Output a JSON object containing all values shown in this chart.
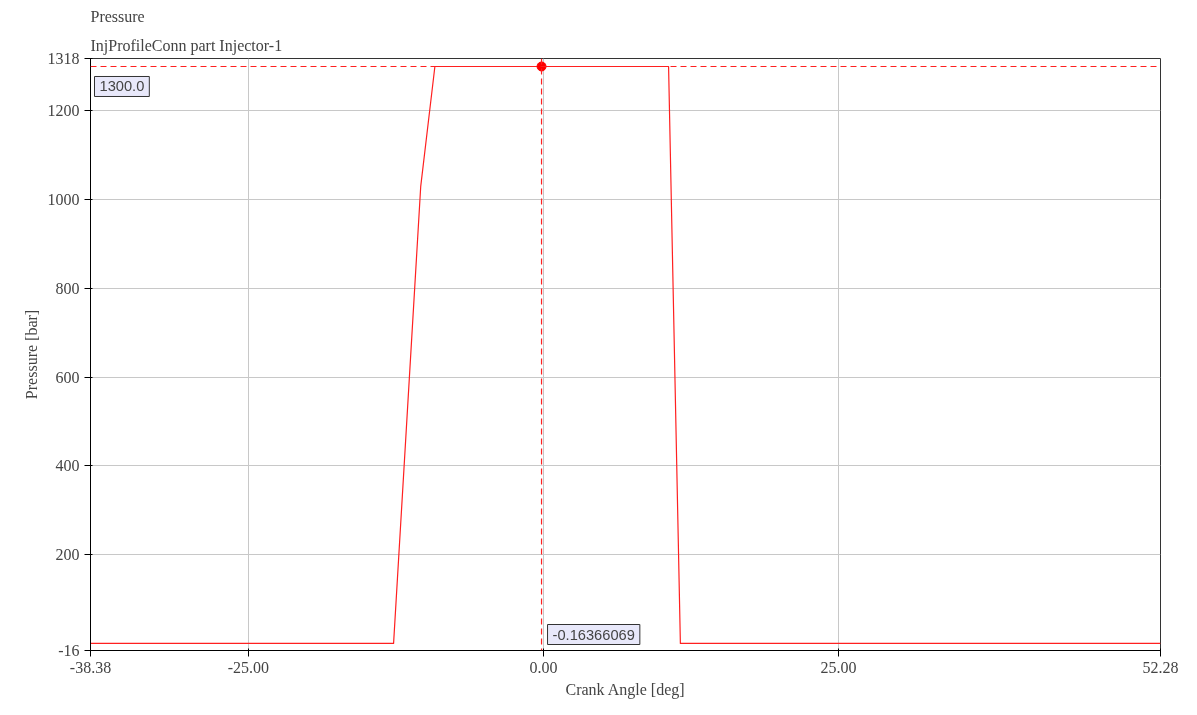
{
  "chart_data": {
    "type": "line",
    "title": "Pressure",
    "subtitle": "InjProfileConn part Injector-1",
    "xlabel": "Crank Angle [deg]",
    "ylabel": "Pressure [bar]",
    "series": [
      {
        "color": "#ff2020",
        "marker": "none",
        "x": [
          -38.38,
          -12.7,
          -10.4,
          -9.2,
          10.6,
          11.6,
          52.28
        ],
        "values": [
          0,
          0,
          1030,
          1300,
          1300,
          0,
          0
        ]
      },
      {
        "type": "scatter",
        "marker": "circle",
        "color": "#ff0000",
        "x": [
          -0.16366069
        ],
        "values": [
          1300
        ]
      }
    ],
    "xlim": [
      -38.38,
      52.28
    ],
    "ylim": [
      -16,
      1318
    ],
    "xticks": [
      {
        "value": -38.38,
        "label": "-38.38"
      },
      {
        "value": -25,
        "label": "-25.00"
      },
      {
        "value": 0,
        "label": "0.00"
      },
      {
        "value": 25,
        "label": "25.00"
      },
      {
        "value": 52.28,
        "label": "52.28"
      }
    ],
    "yticks": [
      -16,
      200,
      400,
      600,
      800,
      1000,
      1200,
      1318
    ],
    "ref_lines": [
      {
        "axis": "y",
        "value": 1300,
        "label": "1300.0",
        "color": "#ff2020",
        "line_style": "dashed"
      },
      {
        "axis": "x",
        "value": -0.16366069,
        "label": "-0.16366069",
        "color": "#ff2020",
        "line_style": "dashed"
      }
    ],
    "grid": true,
    "line_style": "solid"
  }
}
